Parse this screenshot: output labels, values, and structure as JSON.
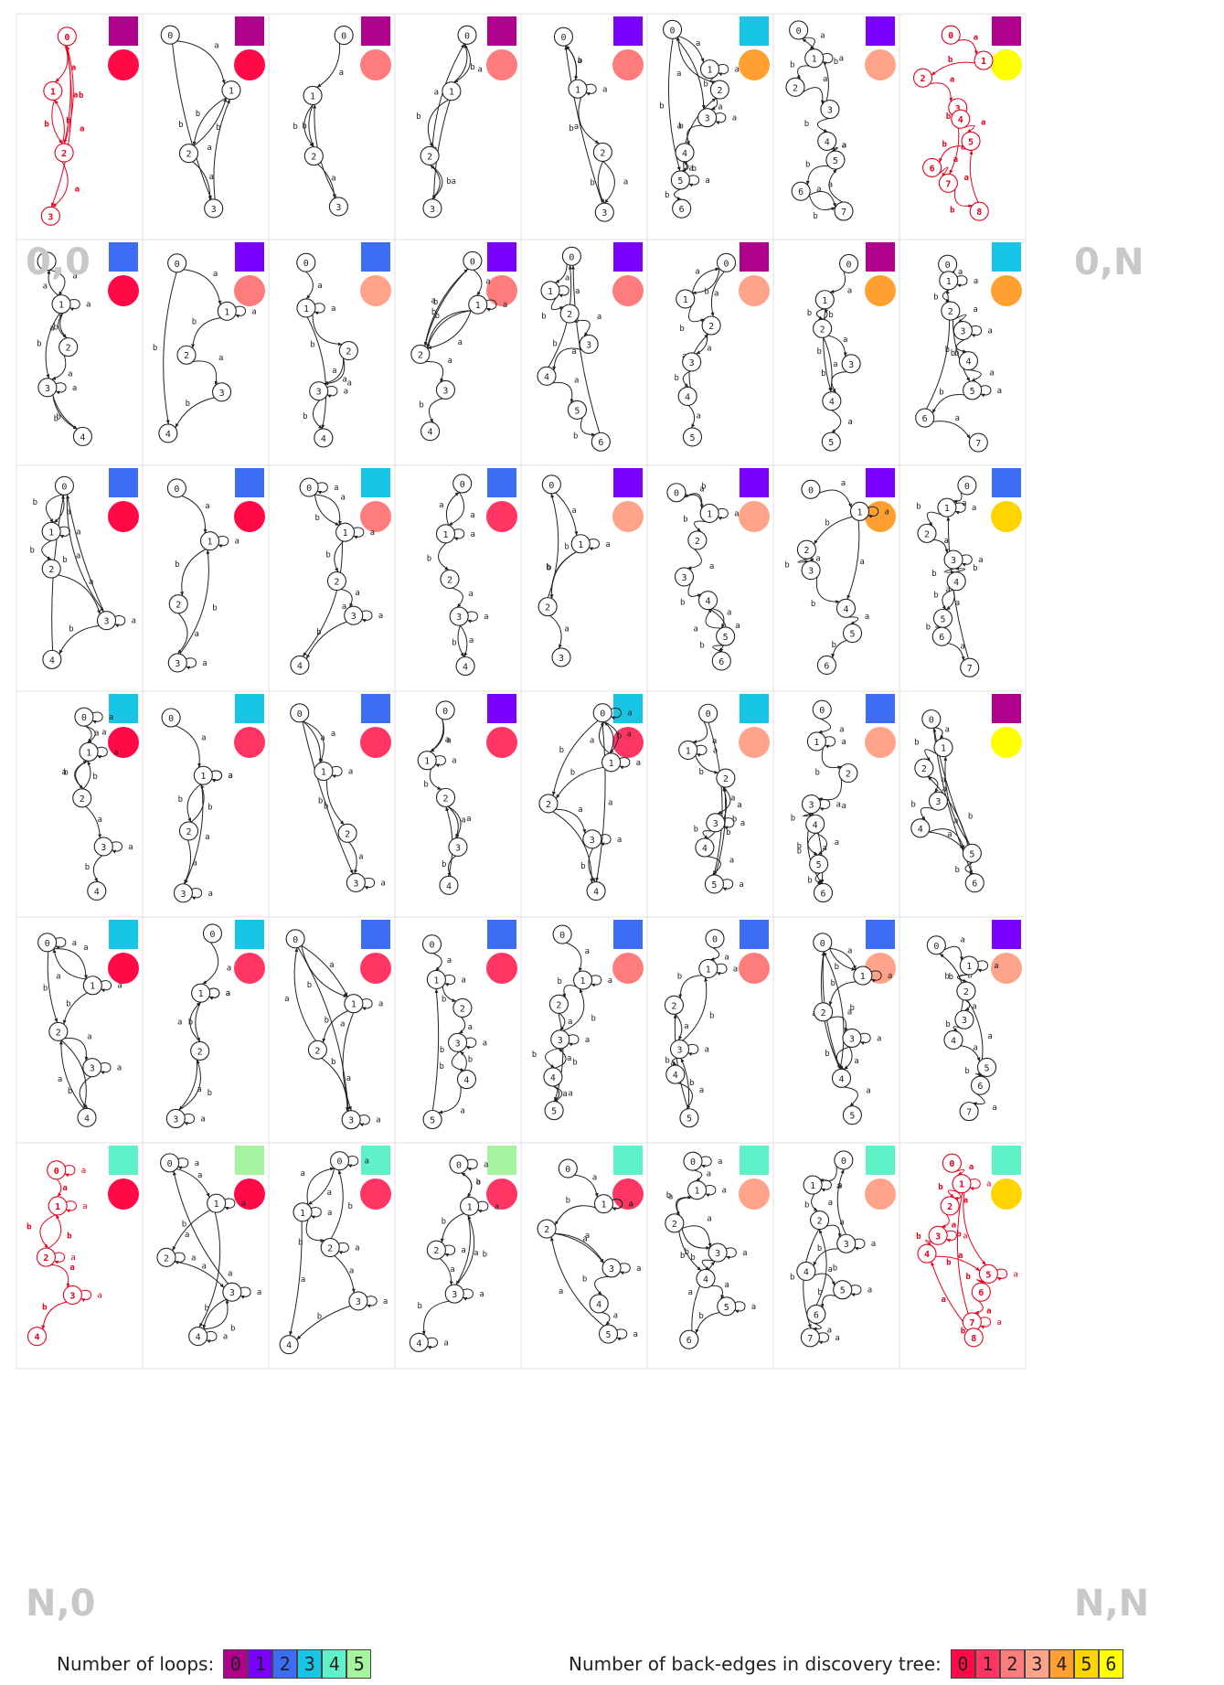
{
  "loop_colors": [
    "#b0008c",
    "#7a00ff",
    "#3d6cf5",
    "#17c5e6",
    "#5ff2c8",
    "#a6f3a0"
  ],
  "back_colors": [
    "#ff0a47",
    "#ff3664",
    "#ff7c7c",
    "#ffa48a",
    "#ffa030",
    "#ffd400",
    "#ffff00"
  ],
  "legend": {
    "loops_title": "Number of loops:",
    "loops_values": [
      "0",
      "1",
      "2",
      "3",
      "4",
      "5"
    ],
    "back_title": "Number of back-edges in discovery tree:",
    "back_values": [
      "0",
      "1",
      "2",
      "3",
      "4",
      "5",
      "6"
    ]
  },
  "corner_labels": {
    "top_left": "0,0",
    "top_right": "0,N",
    "bottom_left": "N,0",
    "bottom_right": "N,N"
  },
  "rows": [
    [
      {
        "loops": 0,
        "back": 0,
        "n": 4
      },
      {
        "loops": 0,
        "back": 0,
        "n": 4
      },
      {
        "loops": 0,
        "back": 2,
        "n": 4
      },
      {
        "loops": 0,
        "back": 2,
        "n": 4
      },
      {
        "loops": 1,
        "back": 2,
        "n": 4
      },
      {
        "loops": 3,
        "back": 4,
        "n": 7
      },
      {
        "loops": 1,
        "back": 3,
        "n": 8
      },
      {
        "loops": 0,
        "back": 6,
        "n": 9
      }
    ],
    [
      {
        "loops": 2,
        "back": 0,
        "n": 5
      },
      {
        "loops": 1,
        "back": 2,
        "n": 5
      },
      {
        "loops": 2,
        "back": 3,
        "n": 5
      },
      {
        "loops": 1,
        "back": 2,
        "n": 5
      },
      {
        "loops": 1,
        "back": 2,
        "n": 7
      },
      {
        "loops": 0,
        "back": 3,
        "n": 6
      },
      {
        "loops": 0,
        "back": 4,
        "n": 6
      },
      {
        "loops": 3,
        "back": 4,
        "n": 8
      }
    ],
    [
      {
        "loops": 2,
        "back": 0,
        "n": 5
      },
      {
        "loops": 2,
        "back": 0,
        "n": 4
      },
      {
        "loops": 3,
        "back": 2,
        "n": 5
      },
      {
        "loops": 2,
        "back": 1,
        "n": 5
      },
      {
        "loops": 1,
        "back": 3,
        "n": 4
      },
      {
        "loops": 1,
        "back": 3,
        "n": 7
      },
      {
        "loops": 1,
        "back": 4,
        "n": 7
      },
      {
        "loops": 2,
        "back": 5,
        "n": 8
      }
    ],
    [
      {
        "loops": 3,
        "back": 0,
        "n": 5
      },
      {
        "loops": 3,
        "back": 1,
        "n": 4
      },
      {
        "loops": 2,
        "back": 1,
        "n": 4
      },
      {
        "loops": 1,
        "back": 1,
        "n": 5
      },
      {
        "loops": 3,
        "back": 1,
        "n": 5
      },
      {
        "loops": 3,
        "back": 3,
        "n": 6
      },
      {
        "loops": 2,
        "back": 3,
        "n": 7
      },
      {
        "loops": 0,
        "back": 6,
        "n": 7
      }
    ],
    [
      {
        "loops": 3,
        "back": 0,
        "n": 5
      },
      {
        "loops": 3,
        "back": 1,
        "n": 4
      },
      {
        "loops": 2,
        "back": 1,
        "n": 4
      },
      {
        "loops": 2,
        "back": 1,
        "n": 6
      },
      {
        "loops": 2,
        "back": 2,
        "n": 6
      },
      {
        "loops": 2,
        "back": 2,
        "n": 6
      },
      {
        "loops": 2,
        "back": 3,
        "n": 6
      },
      {
        "loops": 1,
        "back": 3,
        "n": 8
      }
    ],
    [
      {
        "loops": 4,
        "back": 0,
        "n": 5
      },
      {
        "loops": 5,
        "back": 0,
        "n": 5
      },
      {
        "loops": 4,
        "back": 1,
        "n": 5
      },
      {
        "loops": 5,
        "back": 1,
        "n": 5
      },
      {
        "loops": 4,
        "back": 1,
        "n": 6
      },
      {
        "loops": 4,
        "back": 3,
        "n": 7
      },
      {
        "loops": 4,
        "back": 3,
        "n": 8
      },
      {
        "loops": 4,
        "back": 5,
        "n": 9
      }
    ]
  ]
}
